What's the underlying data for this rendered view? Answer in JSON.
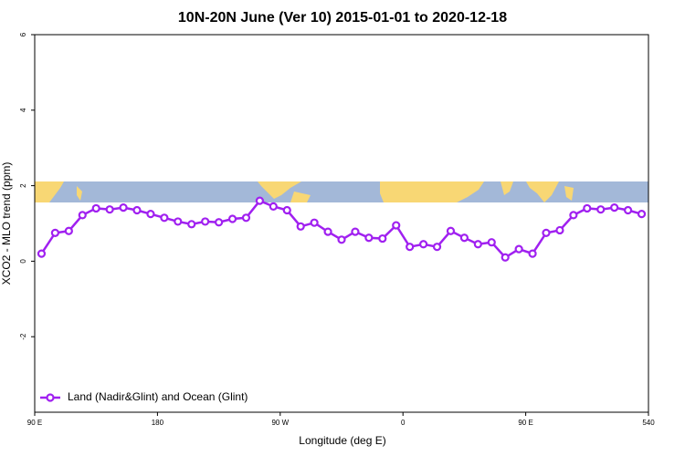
{
  "chart_data": {
    "type": "line",
    "title": "10N-20N June (Ver 10)   2015-01-01 to 2020-12-18",
    "x_label": "Longitude (deg E)",
    "y_label": "XCO2 - MLO trend (ppm)",
    "xlim": [
      90,
      540
    ],
    "xticks": [
      {
        "value": 90,
        "label": "90 E"
      },
      180,
      {
        "value": 270,
        "label": "90 W"
      },
      {
        "value": 360,
        "label": "0"
      },
      {
        "value": 450,
        "label": "90 E"
      },
      540
    ],
    "ylim": [
      -4,
      6
    ],
    "yticks": [
      6,
      4,
      2,
      0,
      -2
    ],
    "legend": "bottom-left",
    "series": [
      {
        "name": "Land (Nadir&Glint) and Ocean (Glint)",
        "color": "#a020f0",
        "x": [
          95,
          105,
          115,
          125,
          135,
          145,
          155,
          165,
          175,
          185,
          195,
          205,
          215,
          225,
          235,
          245,
          255,
          265,
          275,
          285,
          295,
          305,
          315,
          325,
          335,
          345,
          355,
          365,
          375,
          385,
          395,
          405,
          415,
          425,
          435,
          445,
          455,
          465,
          475,
          485,
          495,
          505,
          515,
          525,
          535
        ],
        "values": [
          0.2,
          0.75,
          0.8,
          1.22,
          1.4,
          1.37,
          1.42,
          1.35,
          1.25,
          1.15,
          1.05,
          0.98,
          1.05,
          1.03,
          1.12,
          1.15,
          1.6,
          1.45,
          1.35,
          0.92,
          1.02,
          0.78,
          0.57,
          0.78,
          0.62,
          0.6,
          0.95,
          0.38,
          0.45,
          0.38,
          0.8,
          0.62,
          0.45,
          0.5,
          0.1,
          0.32,
          0.2,
          0.75,
          0.82,
          1.22,
          1.4,
          1.37,
          1.42,
          1.35,
          1.25
        ]
      }
    ]
  }
}
